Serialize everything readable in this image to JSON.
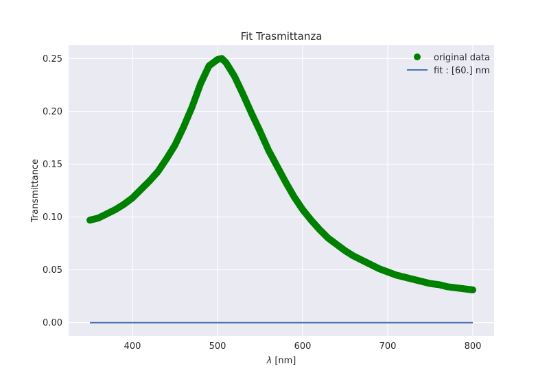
{
  "chart_data": {
    "type": "scatter",
    "title": "Fit Trasmittanza",
    "xlabel_symbol": "λ",
    "xlabel_unit": "[nm]",
    "ylabel": "Transmittance",
    "xlim": [
      325,
      825
    ],
    "ylim": [
      -0.0125,
      0.2625
    ],
    "xticks": [
      400,
      500,
      600,
      700,
      800
    ],
    "xtick_labels": [
      "400",
      "500",
      "600",
      "700",
      "800"
    ],
    "yticks": [
      0.0,
      0.05,
      0.1,
      0.15,
      0.2,
      0.25
    ],
    "ytick_labels": [
      "0.00",
      "0.05",
      "0.10",
      "0.15",
      "0.20",
      "0.25"
    ],
    "grid": true,
    "legend_position": "top-right",
    "series": [
      {
        "name": "original data",
        "kind": "scatter",
        "color": "#008000",
        "x": [
          350,
          360,
          370,
          380,
          390,
          400,
          410,
          420,
          430,
          440,
          450,
          460,
          470,
          480,
          490,
          500,
          505,
          510,
          520,
          530,
          540,
          550,
          560,
          570,
          580,
          590,
          600,
          610,
          620,
          630,
          640,
          650,
          660,
          670,
          680,
          690,
          700,
          710,
          720,
          730,
          740,
          750,
          760,
          770,
          780,
          790,
          800
        ],
        "y": [
          0.097,
          0.099,
          0.103,
          0.107,
          0.112,
          0.118,
          0.126,
          0.134,
          0.143,
          0.155,
          0.168,
          0.185,
          0.204,
          0.226,
          0.243,
          0.249,
          0.25,
          0.246,
          0.233,
          0.216,
          0.198,
          0.181,
          0.163,
          0.148,
          0.133,
          0.119,
          0.107,
          0.097,
          0.088,
          0.08,
          0.074,
          0.068,
          0.063,
          0.059,
          0.055,
          0.051,
          0.048,
          0.045,
          0.043,
          0.041,
          0.039,
          0.037,
          0.036,
          0.034,
          0.033,
          0.032,
          0.031
        ]
      },
      {
        "name": "fit : [60.] nm",
        "kind": "line",
        "color": "#4c72b0",
        "x": [
          350,
          800
        ],
        "y": [
          0.0,
          0.0
        ]
      }
    ]
  },
  "colors": {
    "axes_background": "#eaeaf2",
    "grid": "#ffffff",
    "text": "#262626"
  }
}
